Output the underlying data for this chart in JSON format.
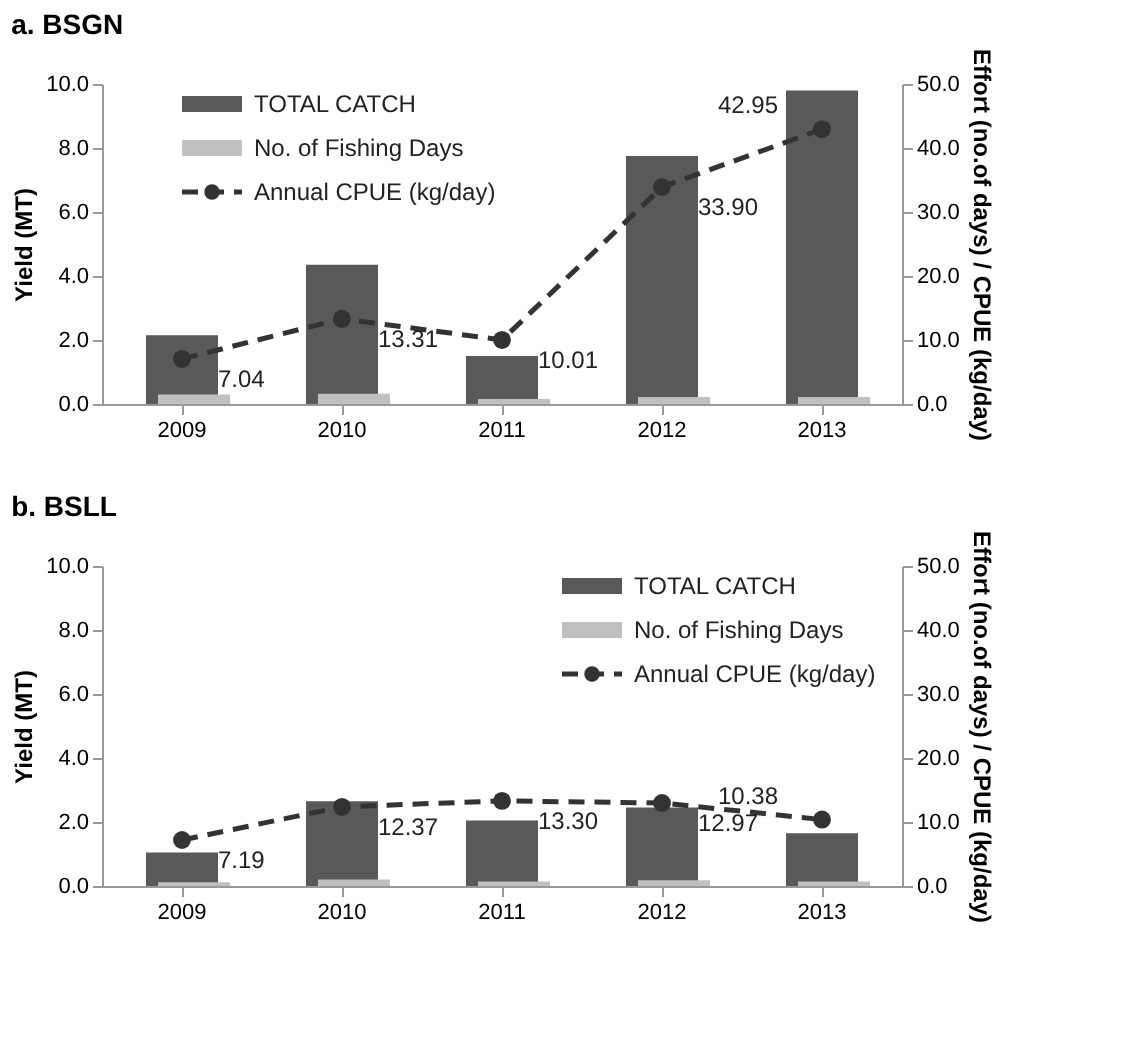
{
  "chart_data": [
    {
      "type": "bar",
      "title": "a. BSGN",
      "categories": [
        "2009",
        "2010",
        "2011",
        "2012",
        "2013"
      ],
      "ylabel": "Yield (MT)",
      "y2label": "Effort (no.of days) / CPUE (kg/day)",
      "ylim": [
        0,
        10
      ],
      "yticks": [
        {
          "value": 0,
          "label": "0.0"
        },
        {
          "value": 2,
          "label": "2.0"
        },
        {
          "value": 4,
          "label": "4.0"
        },
        {
          "value": 6,
          "label": "6.0"
        },
        {
          "value": 8,
          "label": "8.0"
        },
        {
          "value": 10,
          "label": "10.0"
        }
      ],
      "y2lim": [
        0,
        50
      ],
      "y2ticks": [
        {
          "value": 0,
          "label": "0.0"
        },
        {
          "value": 10,
          "label": "10.0"
        },
        {
          "value": 20,
          "label": "20.0"
        },
        {
          "value": 30,
          "label": "30.0"
        },
        {
          "value": 40,
          "label": "40.0"
        },
        {
          "value": 50,
          "label": "50.0"
        }
      ],
      "legend": "top left",
      "grid": false,
      "series": [
        {
          "name": "TOTAL CATCH",
          "color": "#595959",
          "values": [
            2.15,
            4.35,
            1.5,
            7.75,
            9.8
          ]
        },
        {
          "name": "No. of Fishing Days",
          "color": "#c0c0c0",
          "axis": "y2",
          "values": [
            1.5,
            1.6,
            0.8,
            1.1,
            1.1
          ]
        },
        {
          "name": "Annual CPUE (kg/day)",
          "type": "line",
          "axis": "y2",
          "color": "#333333",
          "line_style": "dashed",
          "marker": "circle",
          "values": [
            7.04,
            13.31,
            10.01,
            33.9,
            42.95
          ],
          "value_labels": [
            "7.04",
            "13.31",
            "10.01",
            "33.90",
            "42.95"
          ]
        }
      ]
    },
    {
      "type": "bar",
      "title": "b. BSLL",
      "categories": [
        "2009",
        "2010",
        "2011",
        "2012",
        "2013"
      ],
      "ylabel": "Yield (MT)",
      "y2label": "Effort (no.of days) / CPUE (kg/day)",
      "ylim": [
        0,
        10
      ],
      "yticks": [
        {
          "value": 0,
          "label": "0.0"
        },
        {
          "value": 2,
          "label": "2.0"
        },
        {
          "value": 4,
          "label": "4.0"
        },
        {
          "value": 6,
          "label": "6.0"
        },
        {
          "value": 8,
          "label": "8.0"
        },
        {
          "value": 10,
          "label": "10.0"
        }
      ],
      "y2lim": [
        0,
        50
      ],
      "y2ticks": [
        {
          "value": 0,
          "label": "0.0"
        },
        {
          "value": 10,
          "label": "10.0"
        },
        {
          "value": 20,
          "label": "20.0"
        },
        {
          "value": 30,
          "label": "30.0"
        },
        {
          "value": 40,
          "label": "40.0"
        },
        {
          "value": 50,
          "label": "50.0"
        }
      ],
      "legend": "top right",
      "grid": false,
      "series": [
        {
          "name": "TOTAL CATCH",
          "color": "#595959",
          "values": [
            1.05,
            2.65,
            2.05,
            2.45,
            1.65
          ]
        },
        {
          "name": "No. of Fishing Days",
          "color": "#c0c0c0",
          "axis": "y2",
          "values": [
            0.6,
            1.0,
            0.7,
            0.9,
            0.7
          ]
        },
        {
          "name": "Annual CPUE (kg/day)",
          "type": "line",
          "axis": "y2",
          "color": "#333333",
          "line_style": "dashed",
          "marker": "circle",
          "values": [
            7.19,
            12.37,
            13.3,
            12.97,
            10.38
          ],
          "value_labels": [
            "7.19",
            "12.37",
            "13.30",
            "12.97",
            "10.38"
          ]
        }
      ]
    }
  ]
}
